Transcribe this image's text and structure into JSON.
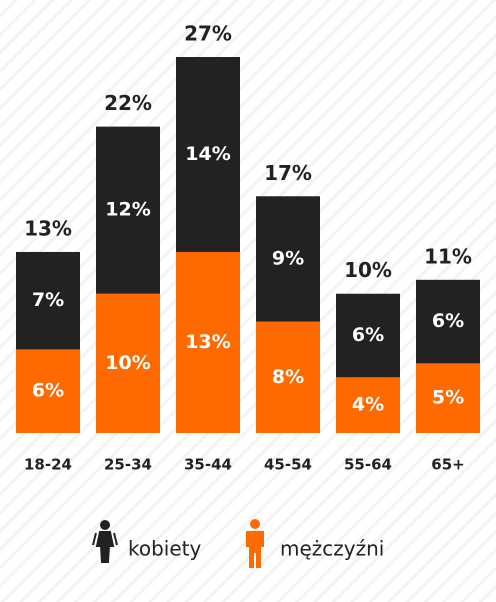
{
  "chart_data": {
    "type": "stacked-bar",
    "categories": [
      "18-24",
      "25-34",
      "35-44",
      "45-54",
      "55-64",
      "65+"
    ],
    "series": [
      {
        "name": "mężczyźni",
        "color": "#ff6a00",
        "values": [
          6,
          10,
          13,
          8,
          4,
          5
        ],
        "value_labels": [
          "6%",
          "10%",
          "13%",
          "8%",
          "4%",
          "5%"
        ]
      },
      {
        "name": "kobiety",
        "color": "#222222",
        "values": [
          7,
          12,
          14,
          9,
          6,
          6
        ],
        "value_labels": [
          "7%",
          "12%",
          "14%",
          "9%",
          "6%",
          "6%"
        ]
      }
    ],
    "totals": [
      13,
      22,
      27,
      17,
      10,
      11
    ],
    "total_labels": [
      "13%",
      "22%",
      "27%",
      "17%",
      "10%",
      "11%"
    ]
  }
}
